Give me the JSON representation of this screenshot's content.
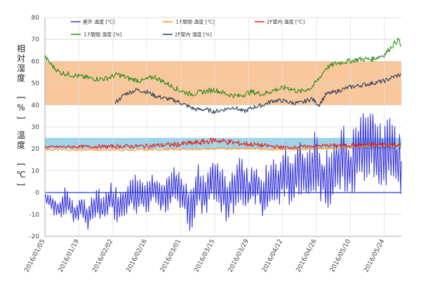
{
  "chart_data": {
    "type": "line",
    "title": "",
    "xlabel": "",
    "ylabel_upper": "相対湿度 [%]",
    "ylabel_lower": "温度 [℃]",
    "ylim": [
      -20,
      80
    ],
    "yticks": [
      -20,
      -10,
      0,
      10,
      20,
      30,
      40,
      50,
      60,
      70,
      80
    ],
    "x_range_days": [
      0,
      147
    ],
    "x_ticks": [
      {
        "day": 0,
        "label": "2016/01/05"
      },
      {
        "day": 14,
        "label": "2016/01/19"
      },
      {
        "day": 28,
        "label": "2016/02/02"
      },
      {
        "day": 42,
        "label": "2016/02/16"
      },
      {
        "day": 56,
        "label": "2016/03/01"
      },
      {
        "day": 70,
        "label": "2016/03/15"
      },
      {
        "day": 84,
        "label": "2016/03/29"
      },
      {
        "day": 98,
        "label": "2016/04/12"
      },
      {
        "day": 112,
        "label": "2016/04/26"
      },
      {
        "day": 126,
        "label": "2016/05/10"
      },
      {
        "day": 140,
        "label": "2016/05/24"
      }
    ],
    "comfort_bands": [
      {
        "name": "humidity",
        "from": 40,
        "to": 60,
        "color": "#f9c79b"
      },
      {
        "name": "temperature",
        "from": 20,
        "to": 25,
        "color": "#9fd3e8"
      }
    ],
    "reference_line": {
      "value": 0,
      "color": "#4a5be0"
    },
    "series": [
      {
        "name": "屋外 温度 [℃]",
        "color": "#3a3ad8",
        "width": 1.1,
        "x": [
          0,
          3,
          6,
          9,
          12,
          15,
          18,
          21,
          24,
          27,
          30,
          33,
          36,
          39,
          42,
          45,
          48,
          51,
          54,
          57,
          60,
          63,
          66,
          69,
          72,
          75,
          78,
          81,
          84,
          87,
          90,
          93,
          96,
          99,
          102,
          105,
          108,
          111,
          114,
          117,
          120,
          123,
          126,
          129,
          132,
          135,
          138,
          141,
          144,
          147
        ],
        "y": [
          -2,
          -5,
          -8,
          -3,
          -10,
          -6,
          -12,
          -4,
          -8,
          -2,
          -6,
          -3,
          -1,
          0,
          -4,
          2,
          -3,
          1,
          4,
          0,
          -8,
          2,
          -2,
          6,
          3,
          -4,
          2,
          8,
          0,
          5,
          -2,
          6,
          3,
          10,
          5,
          12,
          6,
          14,
          8,
          6,
          12,
          16,
          10,
          18,
          22,
          28,
          14,
          20,
          16,
          12
        ],
        "amp": [
          1,
          4,
          3,
          5,
          3,
          4,
          4,
          6,
          4,
          5,
          6,
          5,
          6,
          7,
          6,
          5,
          7,
          6,
          6,
          7,
          7,
          8,
          7,
          7,
          8,
          7,
          8,
          8,
          8,
          7,
          8,
          8,
          8,
          9,
          9,
          9,
          9,
          10,
          9,
          9,
          11,
          11,
          10,
          12,
          12,
          14,
          12,
          12,
          11,
          9
        ]
      },
      {
        "name": "１F居間 温度 [℃]",
        "color": "#ff8c1a",
        "width": 1,
        "x": [
          0,
          20,
          40,
          60,
          80,
          100,
          110,
          120,
          130,
          140,
          147
        ],
        "y": [
          19.5,
          19.5,
          19.5,
          19.8,
          20.2,
          19.6,
          20,
          20.4,
          21,
          21.5,
          21.2
        ],
        "amp": [
          0.5
        ]
      },
      {
        "name": "2F室内 温度 [℃]",
        "color": "#e3231c",
        "width": 1.2,
        "x": [
          0,
          20,
          40,
          55,
          65,
          70,
          80,
          90,
          100,
          110,
          120,
          130,
          140,
          147
        ],
        "y": [
          20.8,
          21,
          21.2,
          22,
          23,
          24,
          22.5,
          21.5,
          20.5,
          21.2,
          21.6,
          21.8,
          22,
          21.8
        ],
        "amp": [
          0.6,
          0.8,
          1,
          1.2,
          1.3,
          1.5,
          1.2,
          1,
          0.8,
          0.8,
          0.8,
          0.9,
          1,
          0.9
        ]
      },
      {
        "name": "１F居間 湿度 [%]",
        "color": "#2e8b1f",
        "width": 1.1,
        "x": [
          0,
          3,
          6,
          10,
          15,
          20,
          25,
          30,
          35,
          40,
          45,
          50,
          55,
          60,
          65,
          70,
          75,
          80,
          85,
          90,
          95,
          100,
          105,
          110,
          113,
          116,
          120,
          125,
          130,
          135,
          140,
          144,
          146,
          147
        ],
        "y": [
          62,
          58,
          55,
          54,
          53,
          52,
          52,
          54,
          52,
          51,
          53,
          50,
          47,
          45,
          46,
          47,
          45,
          44,
          46,
          45,
          47,
          48,
          46,
          48,
          52,
          57,
          59,
          60,
          61,
          61,
          63,
          68,
          70,
          66
        ],
        "amp": [
          1.2
        ]
      },
      {
        "name": "2F室内 湿度 [%]",
        "color": "#2c3e5a",
        "width": 1.1,
        "x": [
          29,
          33,
          38,
          42,
          46,
          50,
          54,
          58,
          62,
          66,
          70,
          74,
          78,
          82,
          86,
          90,
          94,
          98,
          102,
          106,
          110,
          113,
          116,
          120,
          125,
          130,
          135,
          140,
          144,
          147
        ],
        "y": [
          41,
          45,
          47,
          46,
          44,
          43,
          42,
          40,
          38,
          38,
          37,
          38,
          39,
          37,
          39,
          40,
          42,
          42,
          41,
          41,
          43,
          40,
          45,
          46,
          48,
          49,
          50,
          51,
          53,
          54
        ],
        "amp": [
          1.0
        ]
      }
    ]
  }
}
